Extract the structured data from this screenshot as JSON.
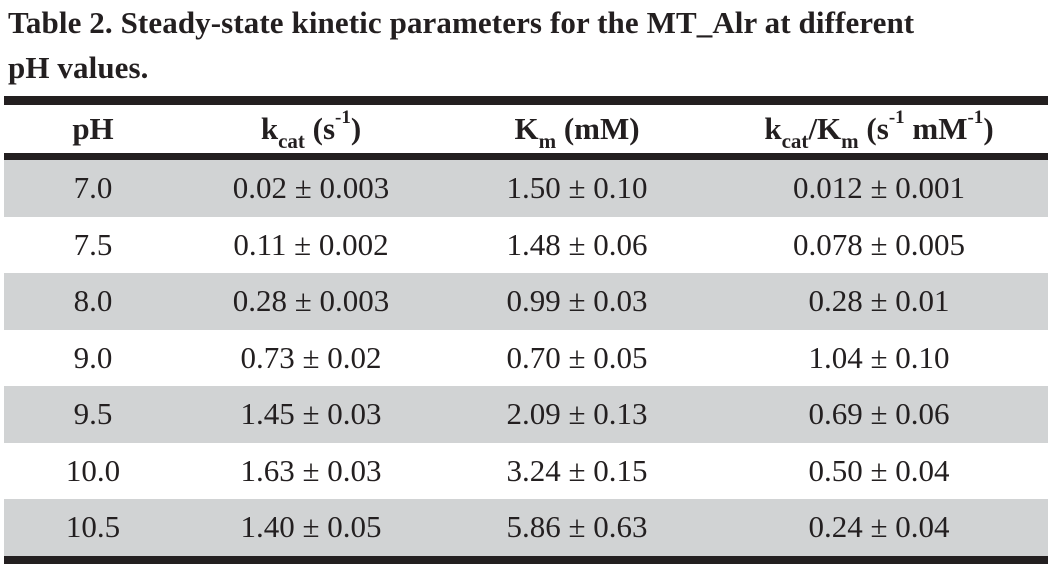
{
  "caption": {
    "line1": "Table 2. Steady-state kinetic parameters for the MT_Alr at different",
    "line2": "pH values."
  },
  "headers": {
    "ph": "pH",
    "kcat": {
      "base": "k",
      "sub": "cat",
      "unit_open": " (s",
      "unit_sup": "-1",
      "unit_close": ")"
    },
    "km": {
      "base": "K",
      "sub": "m",
      "unit": " (mM)"
    },
    "ratio": {
      "base1": "k",
      "sub1": "cat",
      "slash": "/K",
      "sub2": "m",
      "unit_open": " (s",
      "sup1": "-1",
      "mid": " mM",
      "sup2": "-1",
      "unit_close": ")"
    }
  },
  "rows": [
    {
      "ph": "7.0",
      "kcat": "0.02 ± 0.003",
      "km": "1.50 ± 0.10",
      "ratio": "0.012 ± 0.001"
    },
    {
      "ph": "7.5",
      "kcat": "0.11 ± 0.002",
      "km": "1.48 ± 0.06",
      "ratio": "0.078 ± 0.005"
    },
    {
      "ph": "8.0",
      "kcat": "0.28 ± 0.003",
      "km": "0.99 ± 0.03",
      "ratio": "0.28 ± 0.01"
    },
    {
      "ph": "9.0",
      "kcat": "0.73 ± 0.02",
      "km": "0.70 ± 0.05",
      "ratio": "1.04 ± 0.10"
    },
    {
      "ph": "9.5",
      "kcat": "1.45 ± 0.03",
      "km": "2.09 ± 0.13",
      "ratio": "0.69 ± 0.06"
    },
    {
      "ph": "10.0",
      "kcat": "1.63 ± 0.03",
      "km": "3.24 ± 0.15",
      "ratio": "0.50 ± 0.04"
    },
    {
      "ph": "10.5",
      "kcat": "1.40 ± 0.05",
      "km": "5.86 ± 0.63",
      "ratio": "0.24 ± 0.04"
    }
  ],
  "colors": {
    "text": "#231f20",
    "rule": "#231f20",
    "row_shade": "#d1d3d4"
  }
}
